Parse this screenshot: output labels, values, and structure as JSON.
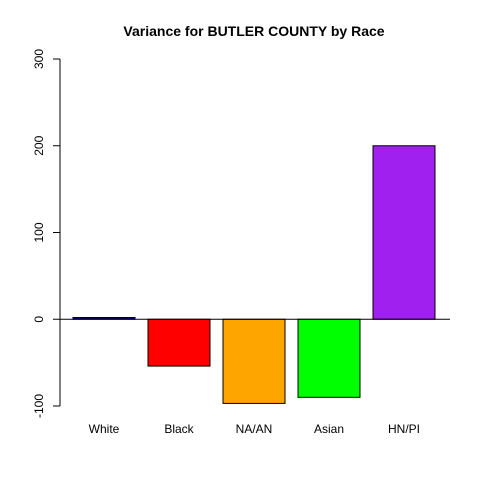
{
  "chart_data": {
    "type": "bar",
    "title": "Variance for BUTLER COUNTY by Race",
    "xlabel": "",
    "ylabel": "",
    "categories": [
      "White",
      "Black",
      "NA/AN",
      "Asian",
      "HN/PI"
    ],
    "values": [
      2,
      -54,
      -97,
      -90,
      200
    ],
    "colors": [
      "#00008b",
      "#ff0000",
      "#ffa500",
      "#00ff00",
      "#a020f0"
    ],
    "ylim": [
      -100,
      300
    ],
    "yticks": [
      -100,
      0,
      100,
      200,
      300
    ],
    "ytick_labels": [
      "-100",
      "0",
      "100",
      "200",
      "300"
    ],
    "zero_line": true,
    "grid": false
  }
}
